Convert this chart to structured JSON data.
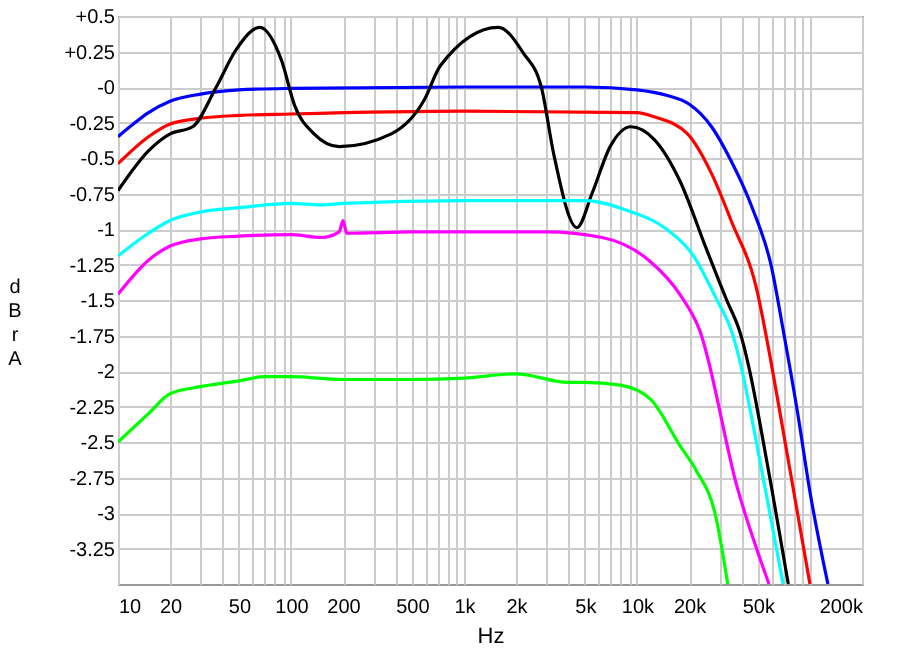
{
  "chart_data": {
    "type": "line",
    "xlabel": "Hz",
    "ylabel": "dBr A",
    "log": "x",
    "grid": true,
    "xlim": [
      10,
      200000
    ],
    "xticks": [
      10,
      20,
      {
        "value": 30,
        "label": null
      },
      {
        "value": 40,
        "label": null
      },
      50,
      {
        "value": 60,
        "label": null
      },
      {
        "value": 70,
        "label": null
      },
      {
        "value": 80,
        "label": null
      },
      {
        "value": 90,
        "label": null
      },
      100,
      200,
      {
        "value": 300,
        "label": null
      },
      {
        "value": 400,
        "label": null
      },
      500,
      {
        "value": 600,
        "label": null
      },
      {
        "value": 700,
        "label": null
      },
      {
        "value": 800,
        "label": null
      },
      {
        "value": 900,
        "label": null
      },
      {
        "value": 1000,
        "label": "1k"
      },
      {
        "value": 2000,
        "label": "2k"
      },
      {
        "value": 3000,
        "label": null
      },
      {
        "value": 4000,
        "label": null
      },
      {
        "value": 5000,
        "label": "5k"
      },
      {
        "value": 6000,
        "label": null
      },
      {
        "value": 7000,
        "label": null
      },
      {
        "value": 8000,
        "label": null
      },
      {
        "value": 9000,
        "label": null
      },
      {
        "value": 10000,
        "label": "10k"
      },
      {
        "value": 20000,
        "label": "20k"
      },
      {
        "value": 30000,
        "label": null
      },
      {
        "value": 40000,
        "label": null
      },
      {
        "value": 50000,
        "label": "50k"
      },
      {
        "value": 60000,
        "label": null
      },
      {
        "value": 70000,
        "label": null
      },
      {
        "value": 80000,
        "label": null
      },
      {
        "value": 90000,
        "label": null
      },
      {
        "value": 100000,
        "label": null
      },
      {
        "value": 200000,
        "label": "200k"
      }
    ],
    "ylim": [
      -3.5,
      0.5
    ],
    "yticks": [
      {
        "value": 0.5,
        "label": "+0.5"
      },
      {
        "value": 0.25,
        "label": "+0.25"
      },
      {
        "value": 0,
        "label": "-0"
      },
      -0.25,
      -0.5,
      -0.75,
      -1,
      -1.25,
      -1.5,
      -1.75,
      -2,
      -2.25,
      -2.5,
      -2.75,
      -3,
      -3.25
    ],
    "series": [
      {
        "color": "#0000ff",
        "x": [
          10,
          12,
          15,
          20,
          30,
          50,
          100,
          1000,
          5000,
          10000,
          15000,
          20000,
          27000,
          35000,
          46000,
          60000,
          70000,
          85000,
          100000,
          127000
        ],
        "values": [
          -0.35,
          -0.27,
          -0.18,
          -0.1,
          -0.05,
          -0.02,
          -0.01,
          0,
          0,
          -0.02,
          -0.06,
          -0.12,
          -0.28,
          -0.52,
          -0.84,
          -1.27,
          -1.71,
          -2.3,
          -2.85,
          -3.5
        ]
      },
      {
        "color": "#ff0000",
        "x": [
          10,
          15,
          20,
          30,
          50,
          100,
          1000,
          10000,
          12600,
          19600,
          27000,
          35000,
          50000,
          55000,
          74000,
          100000
        ],
        "values": [
          -0.54,
          -0.35,
          -0.26,
          -0.22,
          -0.2,
          -0.19,
          -0.17,
          -0.18,
          -0.21,
          -0.33,
          -0.61,
          -0.94,
          -1.46,
          -1.71,
          -2.59,
          -3.5
        ]
      },
      {
        "color": "#000000",
        "x": [
          10,
          15,
          20,
          27,
          37,
          48,
          66,
          88,
          105,
          136,
          190,
          380,
          590,
          730,
          1580,
          2200,
          2800,
          3300,
          4500,
          5500,
          7000,
          9200,
          12600,
          17700,
          25000,
          33000,
          39000,
          60000,
          75000
        ],
        "values": [
          -0.73,
          -0.45,
          -0.33,
          -0.28,
          0.0,
          0.26,
          0.42,
          0.19,
          -0.13,
          -0.33,
          -0.42,
          -0.33,
          -0.09,
          0.15,
          0.42,
          0.24,
          0.0,
          -0.47,
          -0.99,
          -0.75,
          -0.42,
          -0.28,
          -0.37,
          -0.66,
          -1.13,
          -1.5,
          -1.71,
          -2.82,
          -3.5
        ]
      },
      {
        "color": "#00ffff",
        "x": [
          10,
          15,
          20,
          30,
          50,
          100,
          150,
          200,
          1000,
          5000,
          8800,
          14800,
          21000,
          29000,
          35000,
          55000,
          70000
        ],
        "values": [
          -1.19,
          -1.03,
          -0.94,
          -0.88,
          -0.85,
          -0.82,
          -0.83,
          -0.82,
          -0.8,
          -0.8,
          -0.87,
          -1.0,
          -1.18,
          -1.5,
          -1.71,
          -2.82,
          -3.5
        ]
      },
      {
        "color": "#ff00ff",
        "x": [
          10,
          15,
          20,
          30,
          50,
          100,
          150,
          190,
          200,
          210,
          500,
          1000,
          3000,
          6300,
          11700,
          17700,
          23000,
          38000,
          58000
        ],
        "values": [
          -1.46,
          -1.22,
          -1.12,
          -1.07,
          -1.05,
          -1.04,
          -1.06,
          -1.02,
          -0.94,
          -1.03,
          -1.02,
          -1.02,
          -1.02,
          -1.06,
          -1.22,
          -1.46,
          -1.71,
          -2.82,
          -3.5
        ]
      },
      {
        "color": "#00ff00",
        "x": [
          10,
          15,
          20,
          30,
          50,
          70,
          100,
          200,
          500,
          1000,
          2000,
          4000,
          5000,
          8000,
          12000,
          17600,
          22000,
          28500,
          33500
        ],
        "values": [
          -2.5,
          -2.3,
          -2.16,
          -2.11,
          -2.07,
          -2.04,
          -2.04,
          -2.06,
          -2.06,
          -2.05,
          -2.02,
          -2.08,
          -2.08,
          -2.1,
          -2.2,
          -2.52,
          -2.7,
          -3.02,
          -3.5
        ]
      }
    ]
  }
}
